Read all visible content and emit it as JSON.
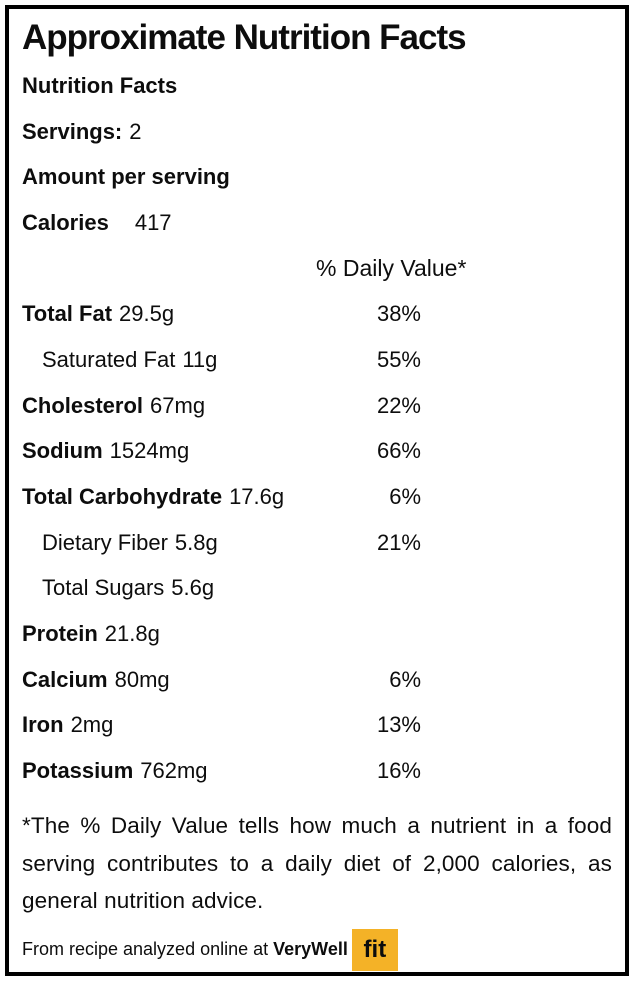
{
  "header": {
    "title": "Approximate Nutrition Facts",
    "subtitle": "Nutrition Facts",
    "servings_label": "Servings:",
    "servings_value": "2",
    "amount_per_serving": "Amount per serving",
    "calories_label": "Calories",
    "calories_value": "417",
    "daily_value_header": "% Daily Value*"
  },
  "nutrients": [
    {
      "name": "Total Fat",
      "amount": "29.5g",
      "percent": "38%"
    },
    {
      "name": "Saturated Fat",
      "amount": "11g",
      "percent": "55%"
    },
    {
      "name": "Cholesterol",
      "amount": "67mg",
      "percent": "22%"
    },
    {
      "name": "Sodium",
      "amount": "1524mg",
      "percent": "66%"
    },
    {
      "name": "Total Carbohydrate",
      "amount": "17.6g",
      "percent": "6%"
    },
    {
      "name": "Dietary Fiber",
      "amount": "5.8g",
      "percent": "21%"
    },
    {
      "name": "Total Sugars",
      "amount": "5.6g",
      "percent": ""
    },
    {
      "name": "Protein",
      "amount": "21.8g",
      "percent": ""
    },
    {
      "name": "Calcium",
      "amount": "80mg",
      "percent": "6%"
    },
    {
      "name": "Iron",
      "amount": "2mg",
      "percent": "13%"
    },
    {
      "name": "Potassium",
      "amount": "762mg",
      "percent": "16%"
    }
  ],
  "footnote": "*The % Daily Value tells how much a nutrient in a food serving contributes to a daily diet of 2,000 calories, as general nutrition advice.",
  "source": {
    "prefix": "From recipe analyzed online at",
    "brand": "VeryWell",
    "badge_text": "fit",
    "badge_color": "#F4B227"
  },
  "colors": {
    "text": "#0d0d0d",
    "border": "#000000",
    "background": "#ffffff"
  }
}
